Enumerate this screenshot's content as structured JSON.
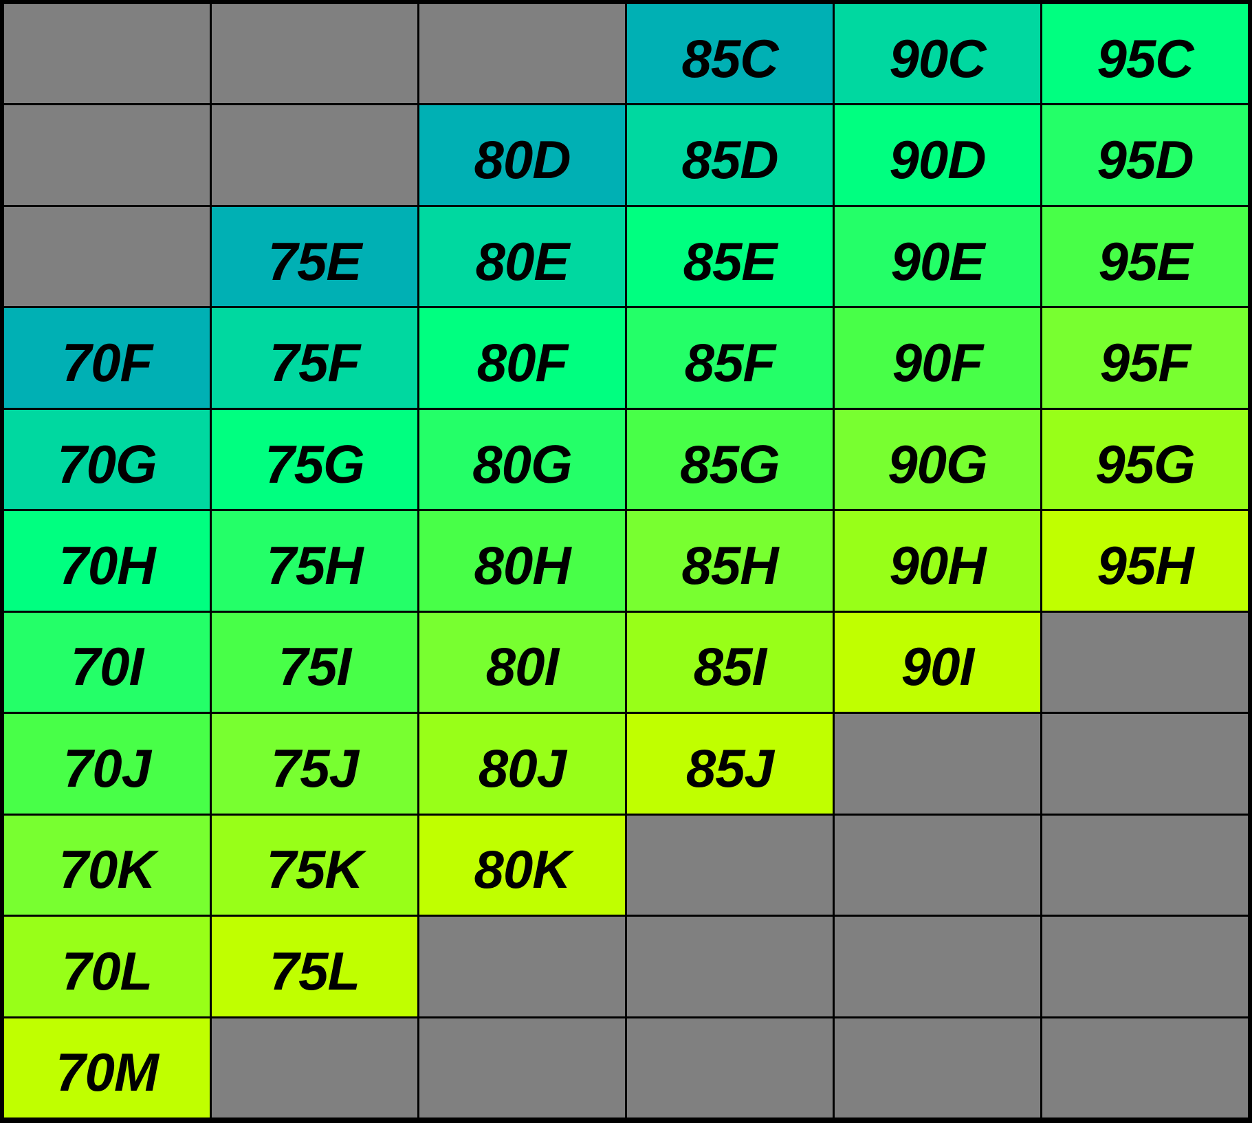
{
  "colors": {
    "empty": "#808080",
    "gradient": [
      "#00B0B4",
      "#00D8A0",
      "#00FF80",
      "#24FF68",
      "#48FF48",
      "#78FF30",
      "#98FF18",
      "#C0FF00"
    ],
    "text": "#000000"
  },
  "rows": [
    [
      "",
      "",
      "",
      "85C",
      "90C",
      "95C"
    ],
    [
      "",
      "",
      "80D",
      "85D",
      "90D",
      "95D"
    ],
    [
      "",
      "75E",
      "80E",
      "85E",
      "90E",
      "95E"
    ],
    [
      "70F",
      "75F",
      "80F",
      "85F",
      "90F",
      "95F"
    ],
    [
      "70G",
      "75G",
      "80G",
      "85G",
      "90G",
      "95G"
    ],
    [
      "70H",
      "75H",
      "80H",
      "85H",
      "90H",
      "95H"
    ],
    [
      "70I",
      "75I",
      "80I",
      "85I",
      "90I",
      ""
    ],
    [
      "70J",
      "75J",
      "80J",
      "85J",
      "",
      ""
    ],
    [
      "70K",
      "75K",
      "80K",
      "",
      "",
      ""
    ],
    [
      "70L",
      "75L",
      "",
      "",
      "",
      ""
    ],
    [
      "70M",
      "",
      "",
      "",
      "",
      ""
    ]
  ]
}
